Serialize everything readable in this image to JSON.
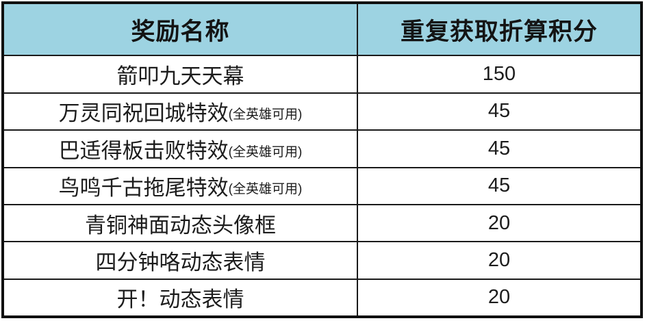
{
  "table": {
    "columns": [
      {
        "label": "奖励名称"
      },
      {
        "label": "重复获取折算积分"
      }
    ],
    "rows": [
      {
        "name": "箭叩九天天幕",
        "note": "",
        "points": "150"
      },
      {
        "name": "万灵同祝回城特效",
        "note": "(全英雄可用)",
        "points": "45"
      },
      {
        "name": "巴适得板击败特效",
        "note": "(全英雄可用)",
        "points": "45"
      },
      {
        "name": "鸟鸣千古拖尾特效",
        "note": "(全英雄可用)",
        "points": "45"
      },
      {
        "name": "青铜神面动态头像框",
        "note": "",
        "points": "20"
      },
      {
        "name": "四分钟咯动态表情",
        "note": "",
        "points": "20"
      },
      {
        "name": "开！动态表情",
        "note": "",
        "points": "20"
      }
    ],
    "colors": {
      "header_bg": "#9dd3e2",
      "border": "#1a1a1a",
      "text": "#1c1c1c",
      "row_bg": "#ffffff"
    }
  }
}
